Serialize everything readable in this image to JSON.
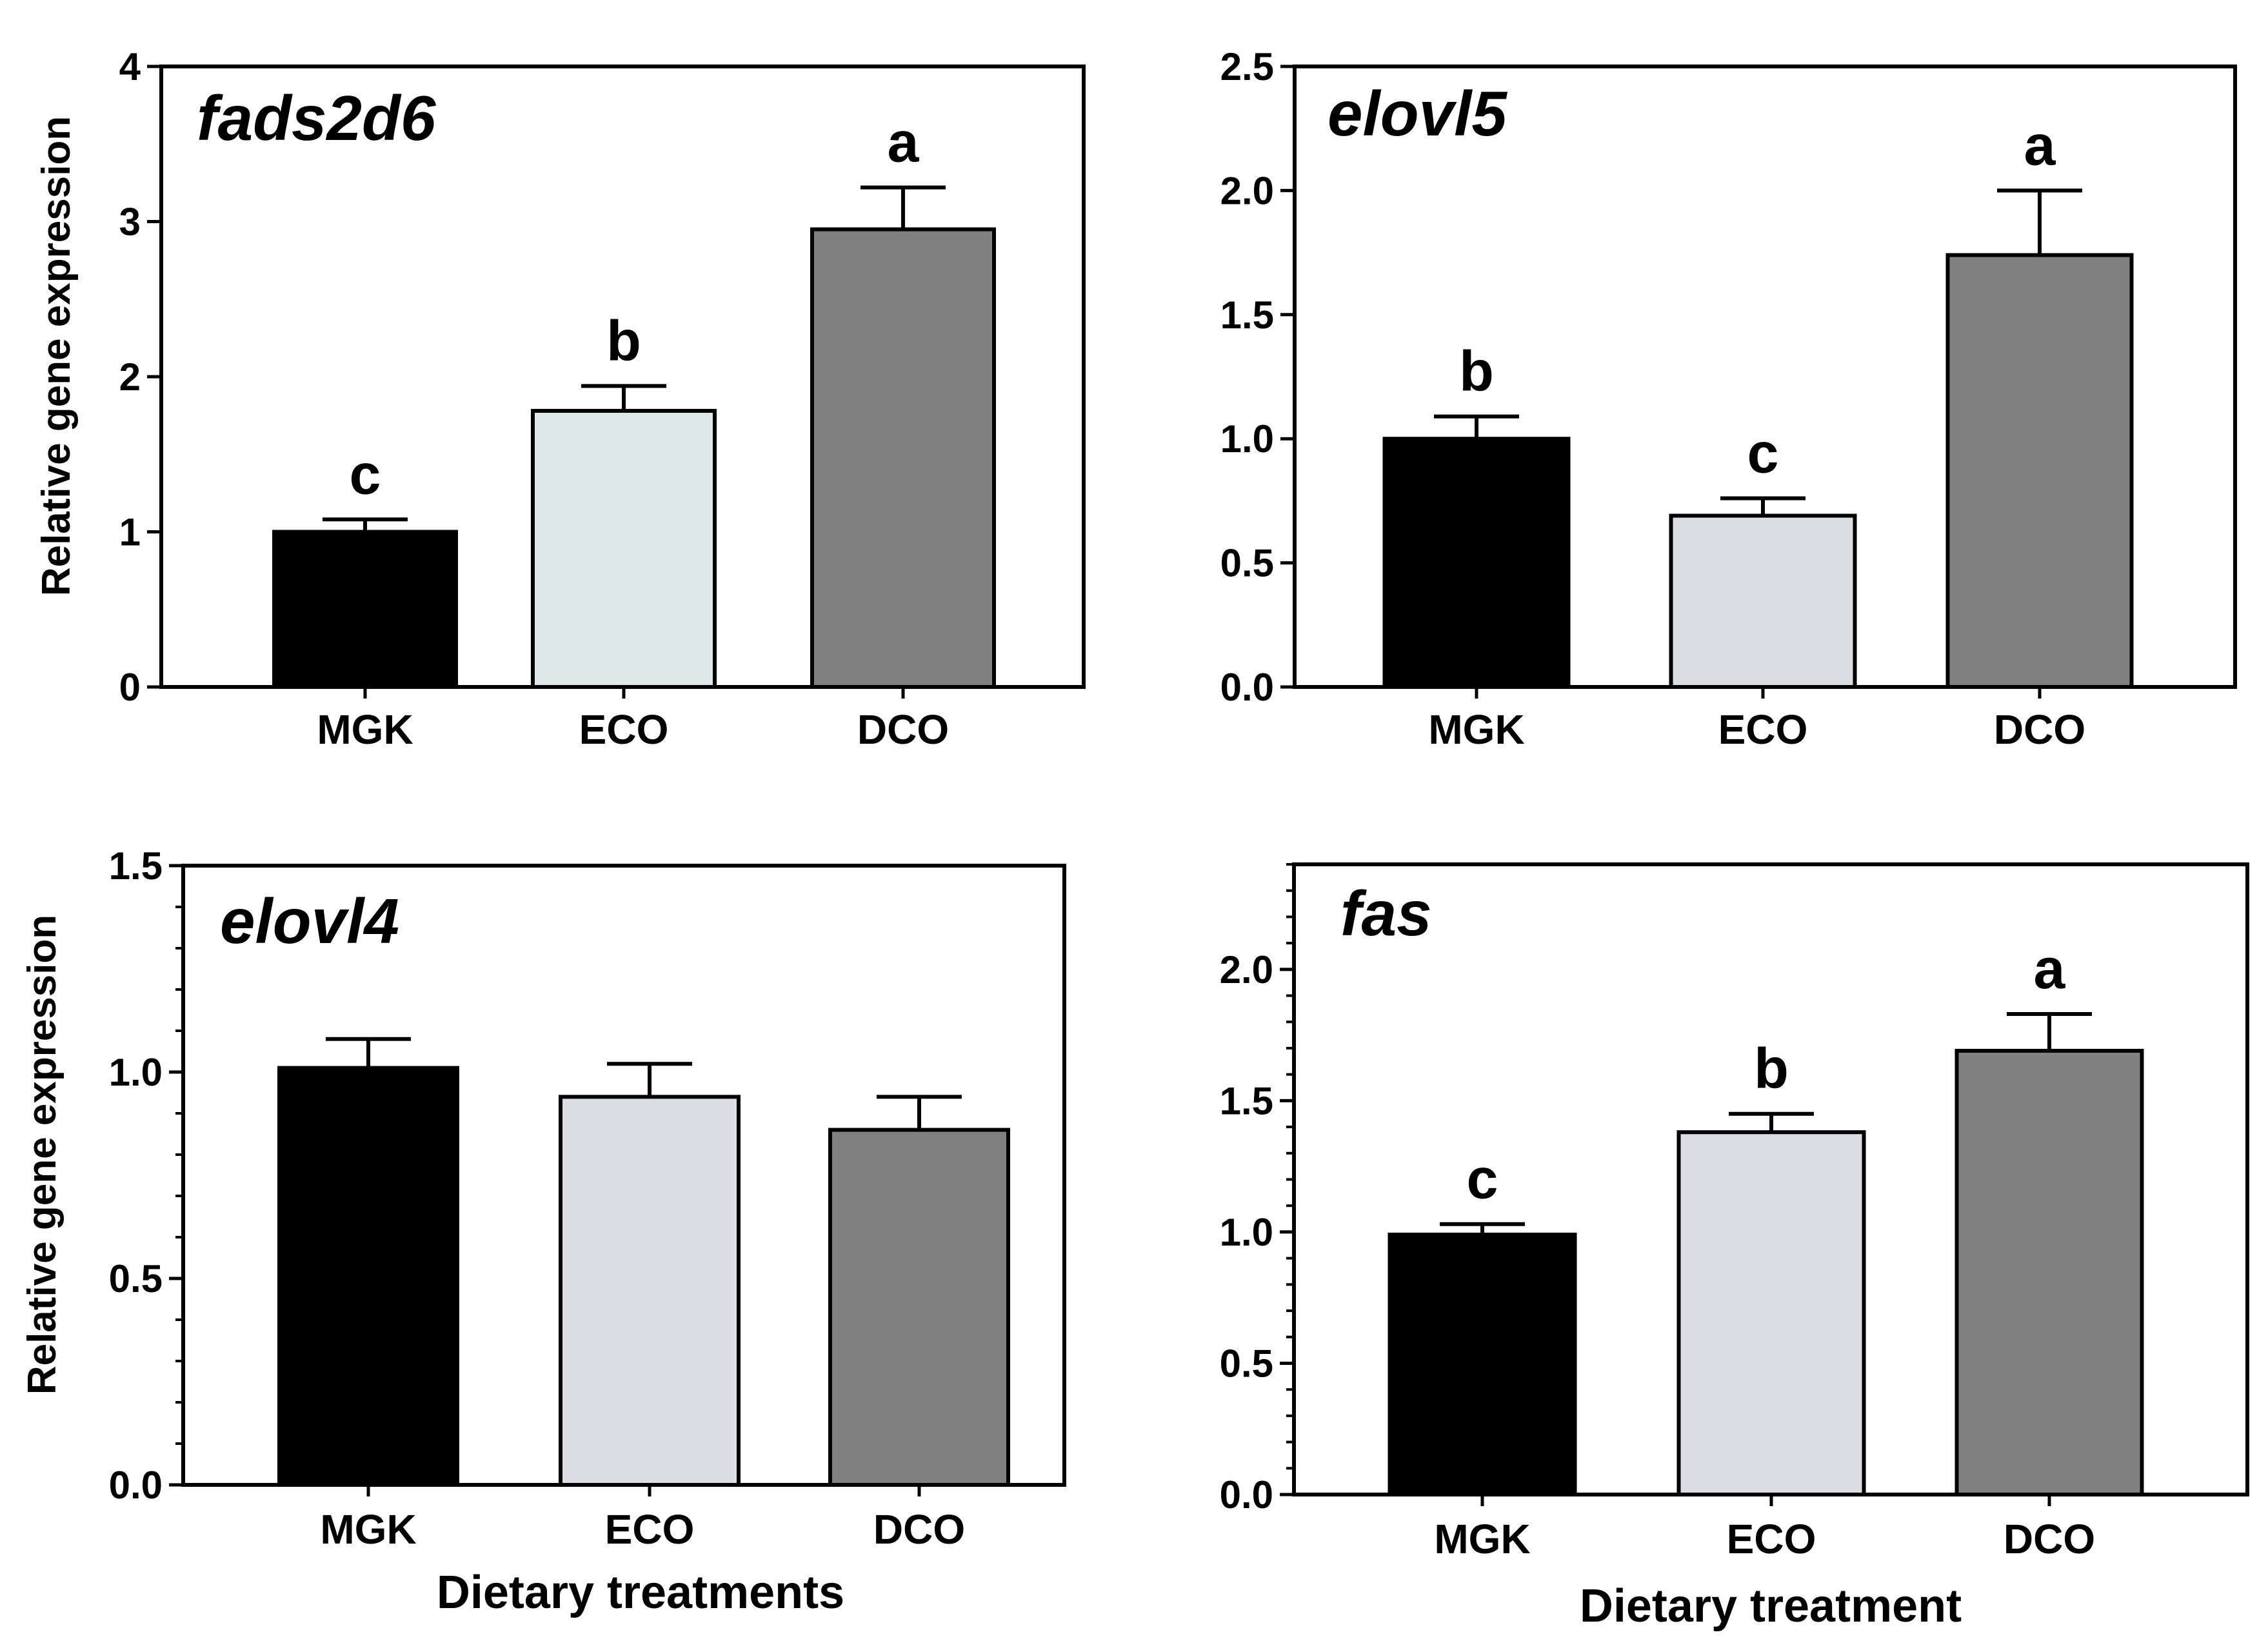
{
  "figure": {
    "shared_ylabel": "Relative gene expression",
    "xlabel_left": "Dietary treatments",
    "xlabel_right": "Dietary treatment"
  },
  "colors": {
    "MGK": "#000000",
    "ECO_top_left": "#dde8e8",
    "ECO": "#dcdde3",
    "DCO": "#808080",
    "ink": "#000000"
  },
  "chart_data": [
    {
      "id": "fads2d6",
      "type": "bar",
      "title": "fads2d6",
      "ylabel": "Relative gene expression",
      "xlabel": "",
      "categories": [
        "MGK",
        "ECO",
        "DCO"
      ],
      "values": [
        1.0,
        1.78,
        2.95
      ],
      "errors": [
        0.08,
        0.16,
        0.27
      ],
      "letters": [
        "c",
        "b",
        "a"
      ],
      "ylim": [
        0,
        4
      ],
      "yticks": [
        0,
        1,
        2,
        3,
        4
      ],
      "ytick_labels": [
        "0",
        "1",
        "2",
        "3",
        "4"
      ],
      "minor_ticks": 0,
      "fill_colors": [
        "#000000",
        "#dde8e8",
        "#808080"
      ]
    },
    {
      "id": "elovl5",
      "type": "bar",
      "title": "elovl5",
      "ylabel": "",
      "xlabel": "",
      "categories": [
        "MGK",
        "ECO",
        "DCO"
      ],
      "values": [
        1.0,
        0.69,
        1.74
      ],
      "errors": [
        0.09,
        0.07,
        0.26
      ],
      "letters": [
        "b",
        "c",
        "a"
      ],
      "ylim": [
        0,
        2.5
      ],
      "yticks": [
        0,
        0.5,
        1.0,
        1.5,
        2.0,
        2.5
      ],
      "ytick_labels": [
        "0.0",
        "0.5",
        "1.0",
        "1.5",
        "2.0",
        "2.5"
      ],
      "minor_ticks": 0,
      "fill_colors": [
        "#000000",
        "#dcdde3",
        "#808080"
      ]
    },
    {
      "id": "elovl4",
      "type": "bar",
      "title": "elovl4",
      "ylabel": "Relative gene expression",
      "xlabel": "Dietary treatments",
      "categories": [
        "MGK",
        "ECO",
        "DCO"
      ],
      "values": [
        1.01,
        0.94,
        0.86
      ],
      "errors": [
        0.07,
        0.08,
        0.08
      ],
      "letters": [
        "",
        "",
        ""
      ],
      "ylim": [
        0,
        1.5
      ],
      "yticks": [
        0,
        0.5,
        1.0,
        1.5
      ],
      "ytick_labels": [
        "0.0",
        "0.5",
        "1.0",
        "1.5"
      ],
      "minor_ticks": 4,
      "fill_colors": [
        "#000000",
        "#dcdde3",
        "#808080"
      ]
    },
    {
      "id": "fas",
      "type": "bar",
      "title": "fas",
      "ylabel": "",
      "xlabel": "Dietary treatment",
      "categories": [
        "MGK",
        "ECO",
        "DCO"
      ],
      "values": [
        0.99,
        1.38,
        1.69
      ],
      "errors": [
        0.04,
        0.07,
        0.14
      ],
      "letters": [
        "c",
        "b",
        "a"
      ],
      "ylim": [
        0,
        2.4
      ],
      "yticks": [
        0,
        0.5,
        1.0,
        1.5,
        2.0
      ],
      "ytick_labels": [
        "0.0",
        "0.5",
        "1.0",
        "1.5",
        "2.0"
      ],
      "minor_ticks": 4,
      "fill_colors": [
        "#000000",
        "#dcdde3",
        "#808080"
      ]
    }
  ]
}
